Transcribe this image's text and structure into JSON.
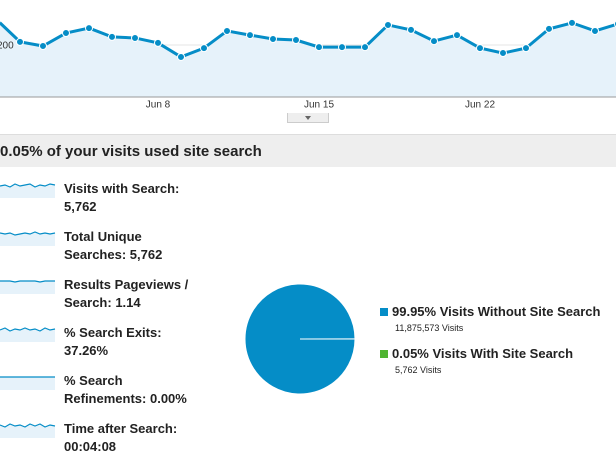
{
  "chart_data": [
    {
      "type": "line",
      "categories": [
        null,
        null,
        null,
        null,
        null,
        null,
        null,
        "Jun 8",
        null,
        null,
        null,
        null,
        null,
        null,
        "Jun 15",
        null,
        null,
        null,
        null,
        null,
        null,
        "Jun 22",
        null,
        null,
        null,
        null,
        null,
        null
      ],
      "series": [
        {
          "color": "#058dc7",
          "values": [
            296,
            212,
            196,
            246,
            265,
            231,
            227,
            208,
            154,
            188,
            254,
            238,
            223,
            219,
            192,
            192,
            192,
            277,
            258,
            215,
            238,
            188,
            169,
            188,
            262,
            285,
            254,
            281
          ]
        }
      ],
      "ylim": [
        0,
        373
      ],
      "yticks": [
        200
      ],
      "grid": true
    },
    {
      "type": "pie",
      "categories": [
        "Visits Without Site Search",
        "Visits With Site Search"
      ],
      "values": [
        99.95,
        0.05
      ],
      "value_labels": [
        "99.95%",
        "0.05%"
      ],
      "details": [
        "11,875,573 Visits",
        "5,762 Visits"
      ],
      "colors": [
        "#058dc7",
        "#50b432"
      ]
    }
  ],
  "section": {
    "title": "0.05% of your visits used site search"
  },
  "metrics": [
    {
      "label": "Visits with Search:",
      "value": "5,762"
    },
    {
      "label": "Total Unique Searches:",
      "value": "5,762"
    },
    {
      "label": "Results Pageviews / Search:",
      "value": "1.14"
    },
    {
      "label": "% Search Exits:",
      "value": "37.26%"
    },
    {
      "label": "% Search Refinements:",
      "value": "0.00%"
    },
    {
      "label": "Time after Search:",
      "value": "00:04:08"
    }
  ]
}
